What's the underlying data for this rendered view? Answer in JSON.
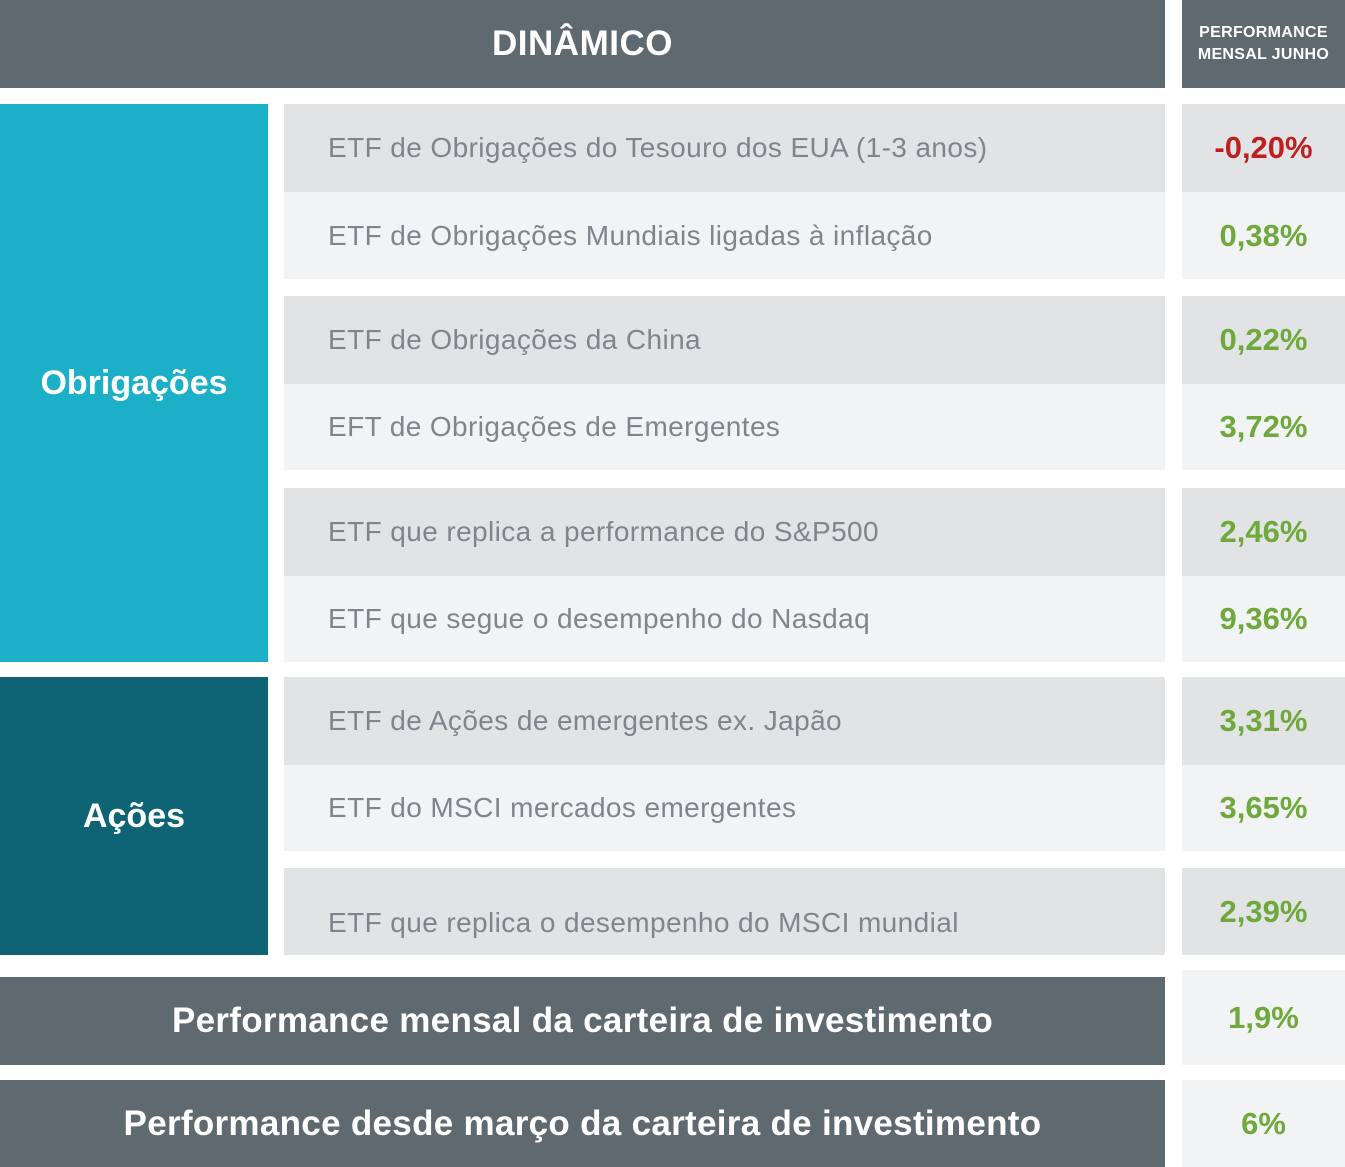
{
  "chart_data": {
    "type": "table",
    "title": "DINÂMICO",
    "value_header": "PERFORMANCE MENSAL JUNHO",
    "value_header_lines": [
      "PERFORMANCE",
      "MENSAL JUNHO"
    ],
    "categories": [
      "Obrigações",
      "Ações"
    ],
    "rows": [
      {
        "label": "ETF de Obrigações do Tesouro dos EUA (1-3 anos)",
        "value": "-0,20%"
      },
      {
        "label": "ETF de Obrigações Mundiais ligadas à inflação",
        "value": "0,38%"
      },
      {
        "label": "ETF de Obrigações da China",
        "value": "0,22%"
      },
      {
        "label": "EFT de Obrigações de Emergentes",
        "value": "3,72%"
      },
      {
        "label": "ETF que replica a performance do S&P500",
        "value": "2,46%"
      },
      {
        "label": "ETF que segue o desempenho do Nasdaq",
        "value": "9,36%"
      },
      {
        "label": "ETF de Ações de emergentes ex. Japão",
        "value": "3,31%"
      },
      {
        "label": "ETF do MSCI  mercados emergentes",
        "value": "3,65%"
      },
      {
        "label": "ETF que replica o desempenho do MSCI mundial",
        "value": "2,39%"
      }
    ],
    "totals": [
      {
        "label": "Performance mensal da carteira de investimento",
        "value": "1,9%"
      },
      {
        "label": "Performance desde março da carteira de investimento",
        "value": "6%"
      }
    ],
    "colors": {
      "header": "#5f6970",
      "obrigacoes": "#1bafc8",
      "acoes": "#0e6474",
      "positive": "#6fa83c",
      "negative": "#bf1f1f"
    }
  }
}
